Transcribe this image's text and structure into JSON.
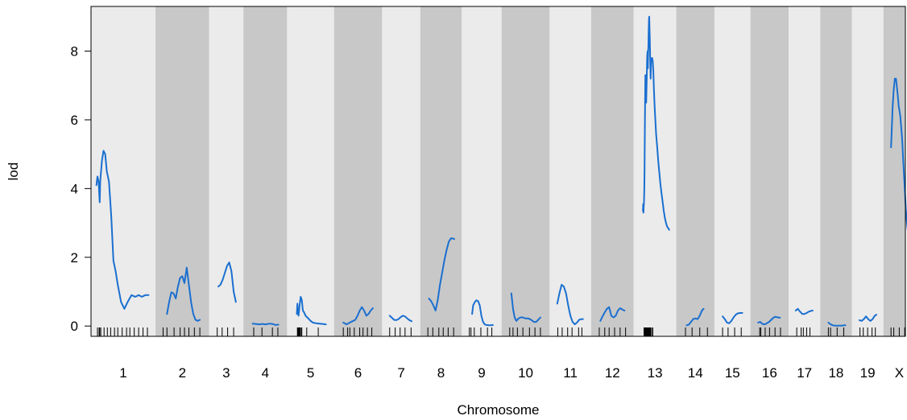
{
  "chart_data": {
    "type": "line",
    "xlabel": "Chromosome",
    "ylabel": "lod",
    "ylim": [
      -0.3,
      9.3
    ],
    "yticks": [
      0,
      2,
      4,
      6,
      8
    ],
    "grid": false,
    "band_colors": [
      "#ebebeb",
      "#c8c8c8"
    ],
    "line_color": "#1a6fd0",
    "chromosomes": [
      {
        "label": "1",
        "length": 100,
        "markers": [
          3,
          6,
          7,
          9,
          15,
          21,
          27,
          34,
          40,
          48,
          56,
          62,
          70,
          78,
          86,
          94
        ],
        "x": [
          1,
          3,
          5,
          7,
          8,
          11,
          14,
          17,
          20,
          24,
          28,
          32,
          36,
          40,
          46,
          52,
          58,
          65,
          72,
          78,
          84,
          90,
          96
        ],
        "lod": [
          4.1,
          4.35,
          4.2,
          3.6,
          4.2,
          4.8,
          5.1,
          5.0,
          4.5,
          4.2,
          3.2,
          1.9,
          1.6,
          1.2,
          0.7,
          0.5,
          0.7,
          0.9,
          0.85,
          0.9,
          0.85,
          0.9,
          0.9
        ]
      },
      {
        "label": "2",
        "length": 80,
        "markers": [
          5,
          12,
          25,
          36,
          44,
          52,
          62,
          72
        ],
        "x": [
          12,
          16,
          20,
          24,
          28,
          32,
          36,
          40,
          44,
          48,
          52,
          56,
          60,
          64,
          68,
          72
        ],
        "lod": [
          0.35,
          0.7,
          0.98,
          0.95,
          0.8,
          1.15,
          1.4,
          1.45,
          1.25,
          1.7,
          1.2,
          0.7,
          0.35,
          0.18,
          0.15,
          0.18
        ]
      },
      {
        "label": "3",
        "length": 45,
        "markers": [
          6,
          15,
          25,
          36
        ],
        "x": [
          8,
          12,
          16,
          20,
          24,
          28,
          32,
          36,
          40
        ],
        "lod": [
          1.15,
          1.2,
          1.35,
          1.55,
          1.75,
          1.85,
          1.6,
          1.0,
          0.7
        ]
      },
      {
        "label": "4",
        "length": 62,
        "markers": [
          10,
          25,
          44,
          54
        ],
        "x": [
          8,
          14,
          20,
          26,
          32,
          38,
          44,
          50,
          55
        ],
        "lod": [
          0.07,
          0.06,
          0.05,
          0.06,
          0.05,
          0.07,
          0.06,
          0.03,
          0.04
        ]
      },
      {
        "label": "5",
        "length": 68,
        "markers": [
          10,
          11,
          12,
          13,
          14,
          15,
          17,
          18,
          27,
          48
        ],
        "x": [
          9,
          10,
          11,
          12,
          13,
          14,
          16,
          18,
          20,
          22,
          25,
          28,
          31,
          34,
          38,
          44,
          50,
          56,
          62
        ],
        "lod": [
          0.35,
          0.65,
          0.4,
          0.3,
          0.45,
          0.6,
          0.85,
          0.75,
          0.45,
          0.4,
          0.3,
          0.25,
          0.2,
          0.15,
          0.1,
          0.08,
          0.07,
          0.06,
          0.05
        ]
      },
      {
        "label": "6",
        "length": 70,
        "markers": [
          8,
          16,
          20,
          28,
          38,
          44,
          52,
          60
        ],
        "x": [
          8,
          14,
          20,
          26,
          30,
          34,
          38,
          42,
          46,
          50,
          54,
          58,
          62
        ],
        "lod": [
          0.1,
          0.05,
          0.1,
          0.15,
          0.18,
          0.3,
          0.45,
          0.55,
          0.45,
          0.3,
          0.35,
          0.45,
          0.52
        ]
      },
      {
        "label": "7",
        "length": 52,
        "markers": [
          5,
          15,
          24,
          33,
          44
        ],
        "x": [
          5,
          9,
          13,
          17,
          21,
          25,
          29,
          33,
          37,
          41,
          45
        ],
        "lod": [
          0.3,
          0.24,
          0.18,
          0.17,
          0.2,
          0.26,
          0.3,
          0.28,
          0.22,
          0.17,
          0.14
        ]
      },
      {
        "label": "8",
        "length": 58,
        "markers": [
          5,
          14,
          25,
          33,
          42,
          52
        ],
        "x": [
          7,
          11,
          15,
          19,
          23,
          27,
          31,
          35,
          39,
          43,
          47,
          50,
          53
        ],
        "lod": [
          0.8,
          0.72,
          0.6,
          0.45,
          0.75,
          1.2,
          1.55,
          1.9,
          2.2,
          2.45,
          2.55,
          2.55,
          2.53
        ]
      },
      {
        "label": "9",
        "length": 55,
        "markers": [
          5,
          8,
          14,
          26,
          38,
          46
        ],
        "x": [
          10,
          12,
          15,
          18,
          21,
          24,
          27,
          30,
          33,
          36,
          40,
          44,
          48
        ],
        "lod": [
          0.35,
          0.6,
          0.7,
          0.75,
          0.72,
          0.6,
          0.3,
          0.12,
          0.05,
          0.03,
          0.02,
          0.02,
          0.03
        ]
      },
      {
        "label": "10",
        "length": 70,
        "markers": [
          6,
          12,
          20,
          30,
          42,
          52,
          62
        ],
        "x": [
          9,
          12,
          15,
          18,
          22,
          26,
          30,
          35,
          40,
          45,
          50,
          54,
          58,
          62
        ],
        "lod": [
          0.95,
          0.5,
          0.25,
          0.15,
          0.22,
          0.25,
          0.25,
          0.22,
          0.22,
          0.18,
          0.12,
          0.12,
          0.18,
          0.25
        ]
      },
      {
        "label": "11",
        "length": 58,
        "markers": [
          6,
          14,
          24,
          32,
          44,
          50
        ],
        "x": [
          5,
          9,
          13,
          17,
          21,
          25,
          29,
          33,
          37,
          41,
          45,
          49,
          52
        ],
        "lod": [
          0.65,
          0.95,
          1.2,
          1.15,
          0.95,
          0.6,
          0.3,
          0.12,
          0.05,
          0.1,
          0.18,
          0.2,
          0.2
        ]
      },
      {
        "label": "12",
        "length": 60,
        "markers": [
          6,
          16,
          24,
          34,
          44,
          54
        ],
        "x": [
          8,
          12,
          16,
          20,
          24,
          28,
          32,
          36,
          40,
          44,
          48,
          52
        ],
        "lod": [
          0.15,
          0.28,
          0.4,
          0.5,
          0.55,
          0.3,
          0.25,
          0.3,
          0.45,
          0.52,
          0.48,
          0.45
        ]
      },
      {
        "label": "13",
        "length": 60,
        "markers": [
          10,
          11,
          12,
          13,
          14,
          15,
          16,
          17,
          18,
          19,
          20,
          21,
          22,
          24,
          26
        ],
        "x": [
          8,
          8.5,
          9,
          9.5,
          10,
          10.5,
          11,
          11.5,
          12,
          12.5,
          13,
          13.5,
          14,
          14.5,
          15,
          15.5,
          16,
          16.5,
          17,
          17.5,
          18,
          18.5,
          19,
          19.5,
          20,
          20.5,
          21,
          21.5,
          22,
          23,
          24,
          25,
          26,
          27,
          28,
          29,
          30,
          31,
          32,
          34,
          36,
          38,
          40,
          42,
          44,
          46,
          48,
          50,
          52,
          54,
          56
        ],
        "lod": [
          3.35,
          3.55,
          3.3,
          3.5,
          3.6,
          4.0,
          4.6,
          5.6,
          6.6,
          7.3,
          7.1,
          6.9,
          6.5,
          6.9,
          7.2,
          7.7,
          7.9,
          8.0,
          7.5,
          7.9,
          8.2,
          8.6,
          8.95,
          9.0,
          8.7,
          8.35,
          8.0,
          7.5,
          7.2,
          7.75,
          7.8,
          7.8,
          7.7,
          7.4,
          6.9,
          6.5,
          6.2,
          5.9,
          5.6,
          5.2,
          4.8,
          4.45,
          4.1,
          3.85,
          3.6,
          3.35,
          3.15,
          3.0,
          2.9,
          2.85,
          2.8
        ]
      },
      {
        "label": "14",
        "length": 52,
        "markers": [
          8,
          20,
          34,
          48
        ],
        "x": [
          10,
          14,
          18,
          22,
          26,
          30,
          34,
          38,
          41
        ],
        "lod": [
          0.02,
          0.04,
          0.12,
          0.2,
          0.22,
          0.2,
          0.3,
          0.45,
          0.5
        ]
      },
      {
        "label": "15",
        "length": 48,
        "markers": [
          6,
          16,
          28,
          40
        ],
        "x": [
          6,
          10,
          14,
          18,
          22,
          26,
          30,
          34,
          38,
          42
        ],
        "lod": [
          0.28,
          0.2,
          0.1,
          0.08,
          0.15,
          0.25,
          0.33,
          0.37,
          0.38,
          0.38
        ]
      },
      {
        "label": "16",
        "length": 52,
        "markers": [
          8,
          10,
          18,
          26,
          36,
          46
        ],
        "x": [
          5,
          9,
          13,
          17,
          21,
          25,
          29,
          33,
          37,
          41,
          45
        ],
        "lod": [
          0.1,
          0.12,
          0.06,
          0.05,
          0.08,
          0.12,
          0.18,
          0.24,
          0.27,
          0.25,
          0.24
        ]
      },
      {
        "label": "17",
        "length": 40,
        "markers": [
          6,
          14,
          18,
          24,
          30
        ],
        "x": [
          4,
          8,
          12,
          16,
          20,
          24,
          28,
          32,
          35
        ],
        "lod": [
          0.45,
          0.5,
          0.42,
          0.35,
          0.35,
          0.38,
          0.42,
          0.44,
          0.45
        ]
      },
      {
        "label": "18",
        "length": 40,
        "markers": [
          6,
          10,
          22,
          34
        ],
        "x": [
          6,
          10,
          14,
          18,
          22,
          26,
          30,
          34,
          37
        ],
        "lod": [
          0.1,
          0.05,
          0.02,
          0.01,
          0.01,
          0.01,
          0.01,
          0.02,
          0.02
        ]
      },
      {
        "label": "19",
        "length": 40,
        "markers": [
          6,
          12,
          20,
          28,
          34
        ],
        "x": [
          5,
          9,
          13,
          17,
          21,
          25,
          29,
          33,
          36
        ],
        "lod": [
          0.17,
          0.15,
          0.2,
          0.28,
          0.2,
          0.15,
          0.2,
          0.3,
          0.33
        ]
      },
      {
        "label": "X",
        "length": 40,
        "markers": [
          5,
          10,
          20,
          30,
          38
        ],
        "x": [
          5,
          6,
          8,
          10,
          12,
          14,
          16,
          18,
          19,
          20,
          21,
          22,
          23,
          24,
          25,
          26,
          27,
          28,
          29,
          30,
          31,
          32,
          33,
          34,
          35,
          36,
          37,
          38
        ],
        "lod": [
          5.2,
          5.6,
          6.4,
          6.9,
          7.2,
          7.2,
          6.9,
          6.6,
          6.4,
          6.3,
          6.2,
          6.1,
          5.9,
          5.7,
          5.5,
          5.2,
          4.9,
          4.6,
          4.3,
          4.0,
          3.7,
          3.4,
          3.2,
          3.0,
          2.85,
          2.7,
          2.65,
          2.6
        ]
      }
    ]
  }
}
